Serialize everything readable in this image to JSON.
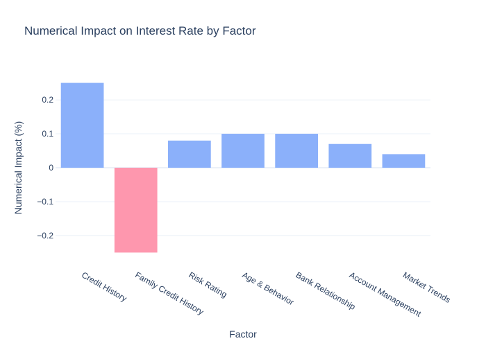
{
  "chart_data": {
    "type": "bar",
    "title": "Numerical Impact on Interest Rate by Factor",
    "xlabel": "Factor",
    "ylabel": "Numerical Impact (%)",
    "categories": [
      "Credit History",
      "Family Credit History",
      "Risk Rating",
      "Age & Behavior",
      "Bank Relationship",
      "Account Management",
      "Market Trends"
    ],
    "values": [
      0.25,
      -0.25,
      0.08,
      0.1,
      0.1,
      0.07,
      0.04
    ],
    "ylim": [
      -0.29,
      0.29
    ],
    "yticks": [
      -0.2,
      -0.1,
      0,
      0.1,
      0.2
    ],
    "ytick_labels": [
      "−0.2",
      "−0.1",
      "0",
      "0.1",
      "0.2"
    ],
    "grid": true,
    "colors": {
      "positive": "#8bb0fa",
      "negative": "#fe97ae",
      "text": "#2a3f5f",
      "grid": "#ebf0f8",
      "zeroline": "#ebf0f8"
    }
  }
}
